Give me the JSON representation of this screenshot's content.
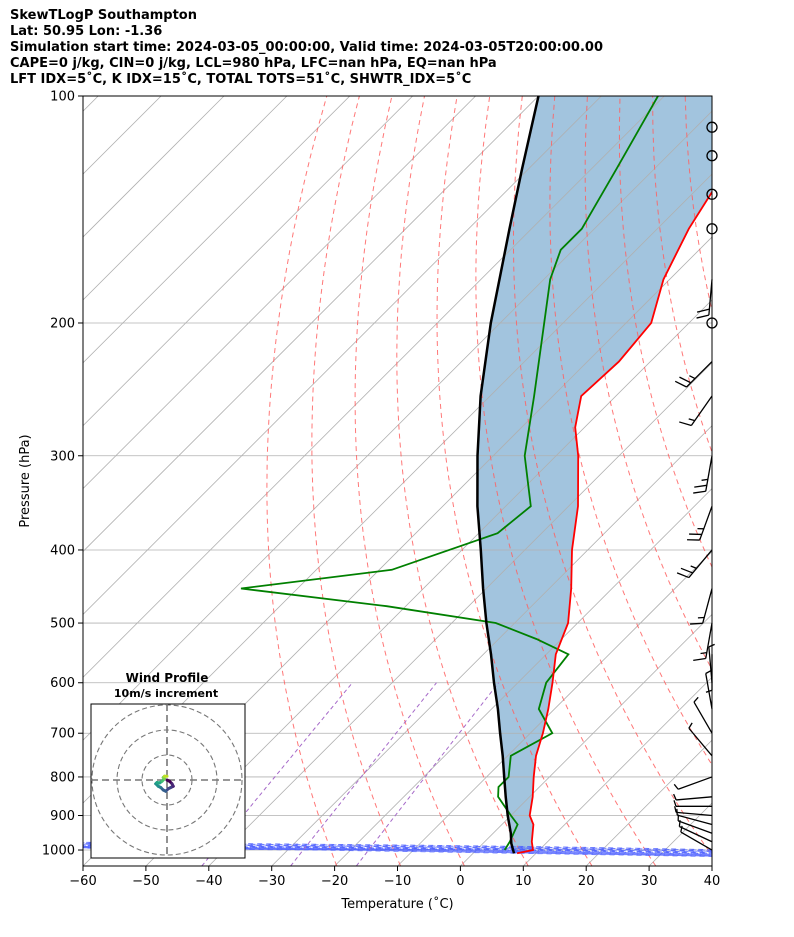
{
  "header": {
    "title": "SkewTLogP Southampton",
    "location": "Lat: 50.95   Lon: -1.36",
    "times": "Simulation start time: 2024-03-05_00:00:00, Valid time: 2024-03-05T20:00:00.00",
    "indices1": "CAPE=0 j/kg, CIN=0 j/kg, LCL=980 hPa, LFC=nan hPa, EQ=nan hPa",
    "indices2": "LFT IDX=5˚C, K IDX=15˚C, TOTAL TOTS=51˚C, SHWTR_IDX=5˚C"
  },
  "chart_data": [
    {
      "type": "skewt",
      "xlabel": "Temperature (˚C)",
      "ylabel": "Pressure (hPa)",
      "xlim": [
        -60,
        40
      ],
      "ylim": [
        1050,
        100
      ],
      "x_ticks": [
        "−60",
        "−50",
        "−40",
        "−30",
        "−20",
        "−10",
        "0",
        "10",
        "20",
        "30",
        "40"
      ],
      "x_tick_values": [
        -60,
        -50,
        -40,
        -30,
        -20,
        -10,
        0,
        10,
        20,
        30,
        40
      ],
      "y_ticks": [
        "1000",
        "900",
        "800",
        "700",
        "600",
        "500",
        "400",
        "300",
        "200",
        "100"
      ],
      "y_tick_values": [
        1000,
        900,
        800,
        700,
        600,
        500,
        400,
        300,
        200,
        100
      ],
      "y_scale": "log",
      "grid": true,
      "colors": {
        "temperature": "#ff0000",
        "dewpoint": "#008000",
        "parcel": "#000000",
        "shade": "#a2c4de",
        "dry_adiabat": "#ff6060",
        "moist_adiabat": "#4a5cff",
        "mixing_ratio": "#a66ac9",
        "isotherm": "#b0b0b0",
        "barb": "#000000"
      },
      "temperature_profile": [
        {
          "p": 1010,
          "t": 7.0
        },
        {
          "p": 1000,
          "t": 9.0
        },
        {
          "p": 975,
          "t": 7.5
        },
        {
          "p": 925,
          "t": 5.0
        },
        {
          "p": 900,
          "t": 3.0
        },
        {
          "p": 850,
          "t": 0.5
        },
        {
          "p": 800,
          "t": -2.5
        },
        {
          "p": 750,
          "t": -5.5
        },
        {
          "p": 700,
          "t": -8.0
        },
        {
          "p": 650,
          "t": -11.0
        },
        {
          "p": 600,
          "t": -14.5
        },
        {
          "p": 550,
          "t": -18.5
        },
        {
          "p": 500,
          "t": -21.5
        },
        {
          "p": 450,
          "t": -26.5
        },
        {
          "p": 400,
          "t": -32.5
        },
        {
          "p": 350,
          "t": -38.5
        },
        {
          "p": 300,
          "t": -46.5
        },
        {
          "p": 275,
          "t": -51.5
        },
        {
          "p": 250,
          "t": -55.5
        },
        {
          "p": 225,
          "t": -55.0
        },
        {
          "p": 200,
          "t": -56.0
        },
        {
          "p": 175,
          "t": -61.0
        },
        {
          "p": 150,
          "t": -65.0
        },
        {
          "p": 125,
          "t": -68.5
        },
        {
          "p": 110,
          "t": -71.0
        },
        {
          "p": 100,
          "t": -72.5
        }
      ],
      "dewpoint_profile": [
        {
          "p": 1000,
          "t": 4.5
        },
        {
          "p": 975,
          "t": 4.0
        },
        {
          "p": 925,
          "t": 2.5
        },
        {
          "p": 900,
          "t": 0.0
        },
        {
          "p": 850,
          "t": -5.0
        },
        {
          "p": 825,
          "t": -6.5
        },
        {
          "p": 800,
          "t": -6.5
        },
        {
          "p": 750,
          "t": -9.5
        },
        {
          "p": 700,
          "t": -6.5
        },
        {
          "p": 650,
          "t": -12.5
        },
        {
          "p": 600,
          "t": -15.5
        },
        {
          "p": 550,
          "t": -16.5
        },
        {
          "p": 525,
          "t": -24.0
        },
        {
          "p": 500,
          "t": -33.0
        },
        {
          "p": 475,
          "t": -53.0
        },
        {
          "p": 450,
          "t": -79.0
        },
        {
          "p": 425,
          "t": -58.0
        },
        {
          "p": 380,
          "t": -47.0
        },
        {
          "p": 350,
          "t": -46.0
        },
        {
          "p": 300,
          "t": -55.0
        },
        {
          "p": 250,
          "t": -63.0
        },
        {
          "p": 200,
          "t": -73.0
        },
        {
          "p": 175,
          "t": -79.0
        },
        {
          "p": 160,
          "t": -82.0
        },
        {
          "p": 150,
          "t": -82.0
        },
        {
          "p": 125,
          "t": -86.0
        },
        {
          "p": 100,
          "t": -91.0
        }
      ],
      "parcel_profile": [
        {
          "p": 1010,
          "t": 6.5
        },
        {
          "p": 980,
          "t": 4.5
        },
        {
          "p": 950,
          "t": 2.8
        },
        {
          "p": 900,
          "t": -0.5
        },
        {
          "p": 850,
          "t": -3.8
        },
        {
          "p": 800,
          "t": -7.2
        },
        {
          "p": 750,
          "t": -10.8
        },
        {
          "p": 700,
          "t": -14.8
        },
        {
          "p": 650,
          "t": -19.0
        },
        {
          "p": 600,
          "t": -23.8
        },
        {
          "p": 550,
          "t": -28.8
        },
        {
          "p": 500,
          "t": -34.5
        },
        {
          "p": 450,
          "t": -40.5
        },
        {
          "p": 400,
          "t": -47.0
        },
        {
          "p": 350,
          "t": -54.5
        },
        {
          "p": 300,
          "t": -62.5
        },
        {
          "p": 250,
          "t": -71.5
        },
        {
          "p": 200,
          "t": -81.5
        },
        {
          "p": 150,
          "t": -93.5
        },
        {
          "p": 125,
          "t": -101.0
        },
        {
          "p": 100,
          "t": -110.0
        }
      ],
      "wind_barbs": [
        {
          "p": 1000,
          "dir": 300,
          "spd": 8
        },
        {
          "p": 975,
          "dir": 295,
          "spd": 6
        },
        {
          "p": 950,
          "dir": 290,
          "spd": 5
        },
        {
          "p": 925,
          "dir": 285,
          "spd": 5
        },
        {
          "p": 900,
          "dir": 275,
          "spd": 5
        },
        {
          "p": 875,
          "dir": 270,
          "spd": 5
        },
        {
          "p": 850,
          "dir": 265,
          "spd": 5
        },
        {
          "p": 800,
          "dir": 250,
          "spd": 5
        },
        {
          "p": 750,
          "dir": 320,
          "spd": 5
        },
        {
          "p": 700,
          "dir": 330,
          "spd": 5
        },
        {
          "p": 650,
          "dir": 350,
          "spd": 5
        },
        {
          "p": 600,
          "dir": 355,
          "spd": 5
        },
        {
          "p": 550,
          "dir": 180,
          "spd": 5
        },
        {
          "p": 500,
          "dir": 190,
          "spd": 15
        },
        {
          "p": 450,
          "dir": 195,
          "spd": 15
        },
        {
          "p": 400,
          "dir": 220,
          "spd": 25
        },
        {
          "p": 350,
          "dir": 200,
          "spd": 25
        },
        {
          "p": 300,
          "dir": 190,
          "spd": 25
        },
        {
          "p": 250,
          "dir": 215,
          "spd": 15
        },
        {
          "p": 225,
          "dir": 225,
          "spd": 25
        },
        {
          "p": 175,
          "dir": 185,
          "spd": 20
        },
        {
          "p": 200,
          "dir": 0,
          "spd": 0
        },
        {
          "p": 150,
          "dir": 0,
          "spd": 0
        },
        {
          "p": 135,
          "dir": 0,
          "spd": 0
        },
        {
          "p": 120,
          "dir": 0,
          "spd": 0
        },
        {
          "p": 110,
          "dir": 0,
          "spd": 0
        }
      ]
    },
    {
      "type": "hodograph",
      "title": "Wind Profile",
      "subtitle": "10m/s increment",
      "rings_mps": [
        10,
        20,
        30
      ],
      "trace": [
        {
          "u": 0.0,
          "v": 0.0
        },
        {
          "u": 1.0,
          "v": -0.5
        },
        {
          "u": 2.0,
          "v": -1.5
        },
        {
          "u": 2.5,
          "v": -2.5
        },
        {
          "u": 1.5,
          "v": -3.0
        },
        {
          "u": 0.5,
          "v": -3.5
        },
        {
          "u": -0.5,
          "v": -4.5
        },
        {
          "u": -1.5,
          "v": -4.0
        },
        {
          "u": -2.5,
          "v": -3.0
        },
        {
          "u": -3.5,
          "v": -2.5
        },
        {
          "u": -4.5,
          "v": -1.5
        },
        {
          "u": -4.0,
          "v": -1.0
        },
        {
          "u": -3.0,
          "v": -1.2
        },
        {
          "u": -2.0,
          "v": -0.5
        },
        {
          "u": -1.5,
          "v": 0.0
        },
        {
          "u": -1.0,
          "v": 0.5
        },
        {
          "u": -1.5,
          "v": 1.0
        },
        {
          "u": -1.0,
          "v": 1.5
        },
        {
          "u": 0.0,
          "v": 1.5
        }
      ]
    }
  ]
}
